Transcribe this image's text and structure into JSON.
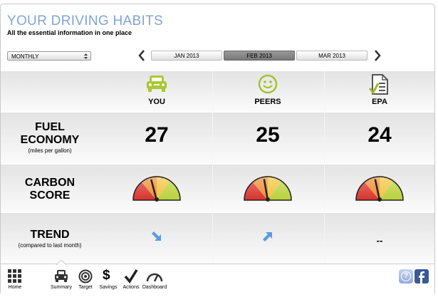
{
  "header": {
    "title": "YOUR DRIVING HABITS",
    "subtitle": "All the essential information in one place"
  },
  "period_select": "MONTHLY",
  "months": [
    {
      "label": "JAN 2013",
      "selected": false
    },
    {
      "label": "FEB 2013",
      "selected": true
    },
    {
      "label": "MAR 2013",
      "selected": false
    }
  ],
  "columns": [
    "YOU",
    "PEERS",
    "EPA"
  ],
  "rows": [
    {
      "label": [
        "FUEL",
        "ECONOMY"
      ],
      "note": "(miles per gallon)",
      "values": [
        27,
        25,
        24
      ]
    },
    {
      "label": [
        "CARBON",
        "SCORE"
      ]
    },
    {
      "label": [
        "TREND"
      ],
      "note": "(compared to last month)",
      "epa": "--"
    }
  ],
  "nav": [
    "Home",
    "Summary",
    "Target",
    "Savings",
    "Actions",
    "Dashboard"
  ],
  "savings_icon": "$",
  "help_icon": "?"
}
